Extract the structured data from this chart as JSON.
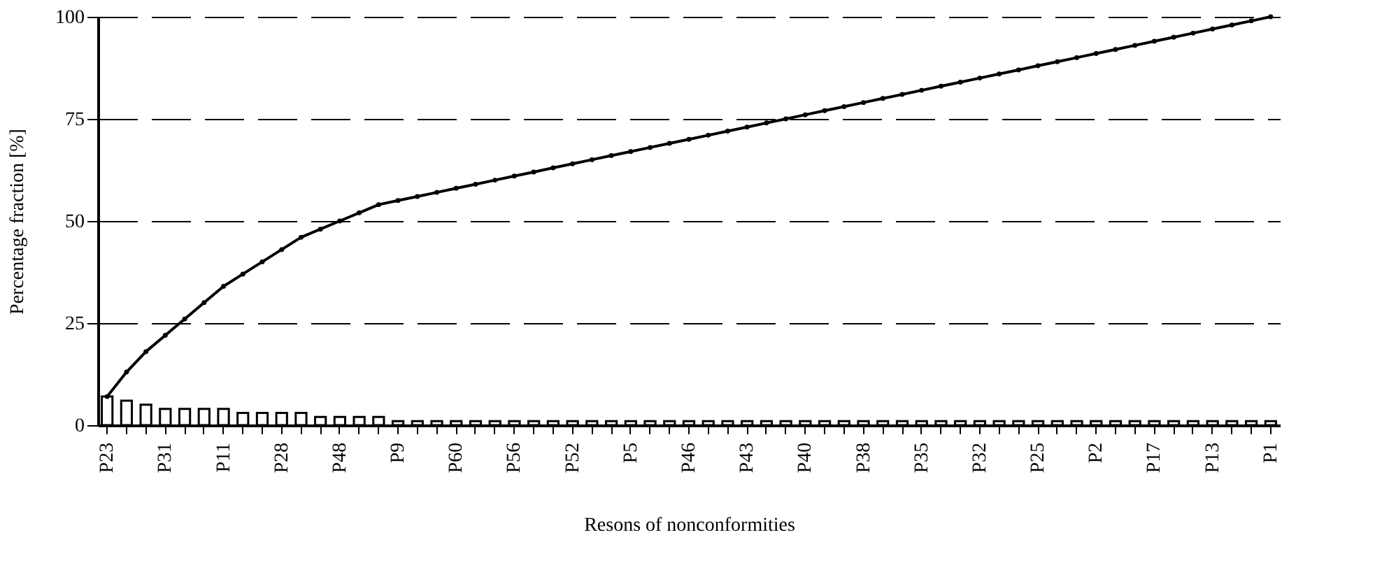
{
  "chart_data": {
    "type": "bar",
    "xlabel": "Resons of nonconformities",
    "ylabel": "Percentage fraction [%]",
    "categories": [
      "P23",
      null,
      null,
      "P31",
      null,
      null,
      "P11",
      null,
      null,
      "P28",
      null,
      null,
      "P48",
      null,
      null,
      "P9",
      null,
      null,
      "P60",
      null,
      null,
      "P56",
      null,
      null,
      "P52",
      null,
      null,
      "P5",
      null,
      null,
      "P46",
      null,
      null,
      "P43",
      null,
      null,
      "P40",
      null,
      null,
      "P38",
      null,
      null,
      "P35",
      null,
      null,
      "P32",
      null,
      null,
      "P25",
      null,
      null,
      "P2",
      null,
      null,
      "P17",
      null,
      null,
      "P13",
      null,
      null,
      "P1"
    ],
    "series": [
      {
        "color": "#000000",
        "values": [
          7,
          6,
          5,
          4,
          4,
          4,
          4,
          3,
          3,
          3,
          3,
          2,
          2,
          2,
          2,
          1,
          1,
          1,
          1,
          1,
          1,
          1,
          1,
          1,
          1,
          1,
          1,
          1,
          1,
          1,
          1,
          1,
          1,
          1,
          1,
          1,
          1,
          1,
          1,
          1,
          1,
          1,
          1,
          1,
          1,
          1,
          1,
          1,
          1,
          1,
          1,
          1,
          1,
          1,
          1,
          1,
          1,
          1,
          1,
          1,
          1
        ]
      },
      {
        "type": "line",
        "color": "#000000",
        "marker": "circle",
        "values": [
          7,
          13,
          18,
          22,
          26,
          30,
          34,
          37,
          40,
          43,
          46,
          48,
          50,
          52,
          54,
          55,
          56,
          57,
          58,
          59,
          60,
          61,
          62,
          63,
          64,
          65,
          66,
          67,
          68,
          69,
          70,
          71,
          72,
          73,
          74,
          75,
          76,
          77,
          78,
          79,
          80,
          81,
          82,
          83,
          84,
          85,
          86,
          87,
          88,
          89,
          90,
          91,
          92,
          93,
          94,
          95,
          96,
          97,
          98,
          99,
          100
        ]
      }
    ],
    "ylim": [
      0,
      100
    ],
    "yticks": [
      0,
      25,
      50,
      75,
      100
    ],
    "grid": "y",
    "line_style": "solid"
  }
}
